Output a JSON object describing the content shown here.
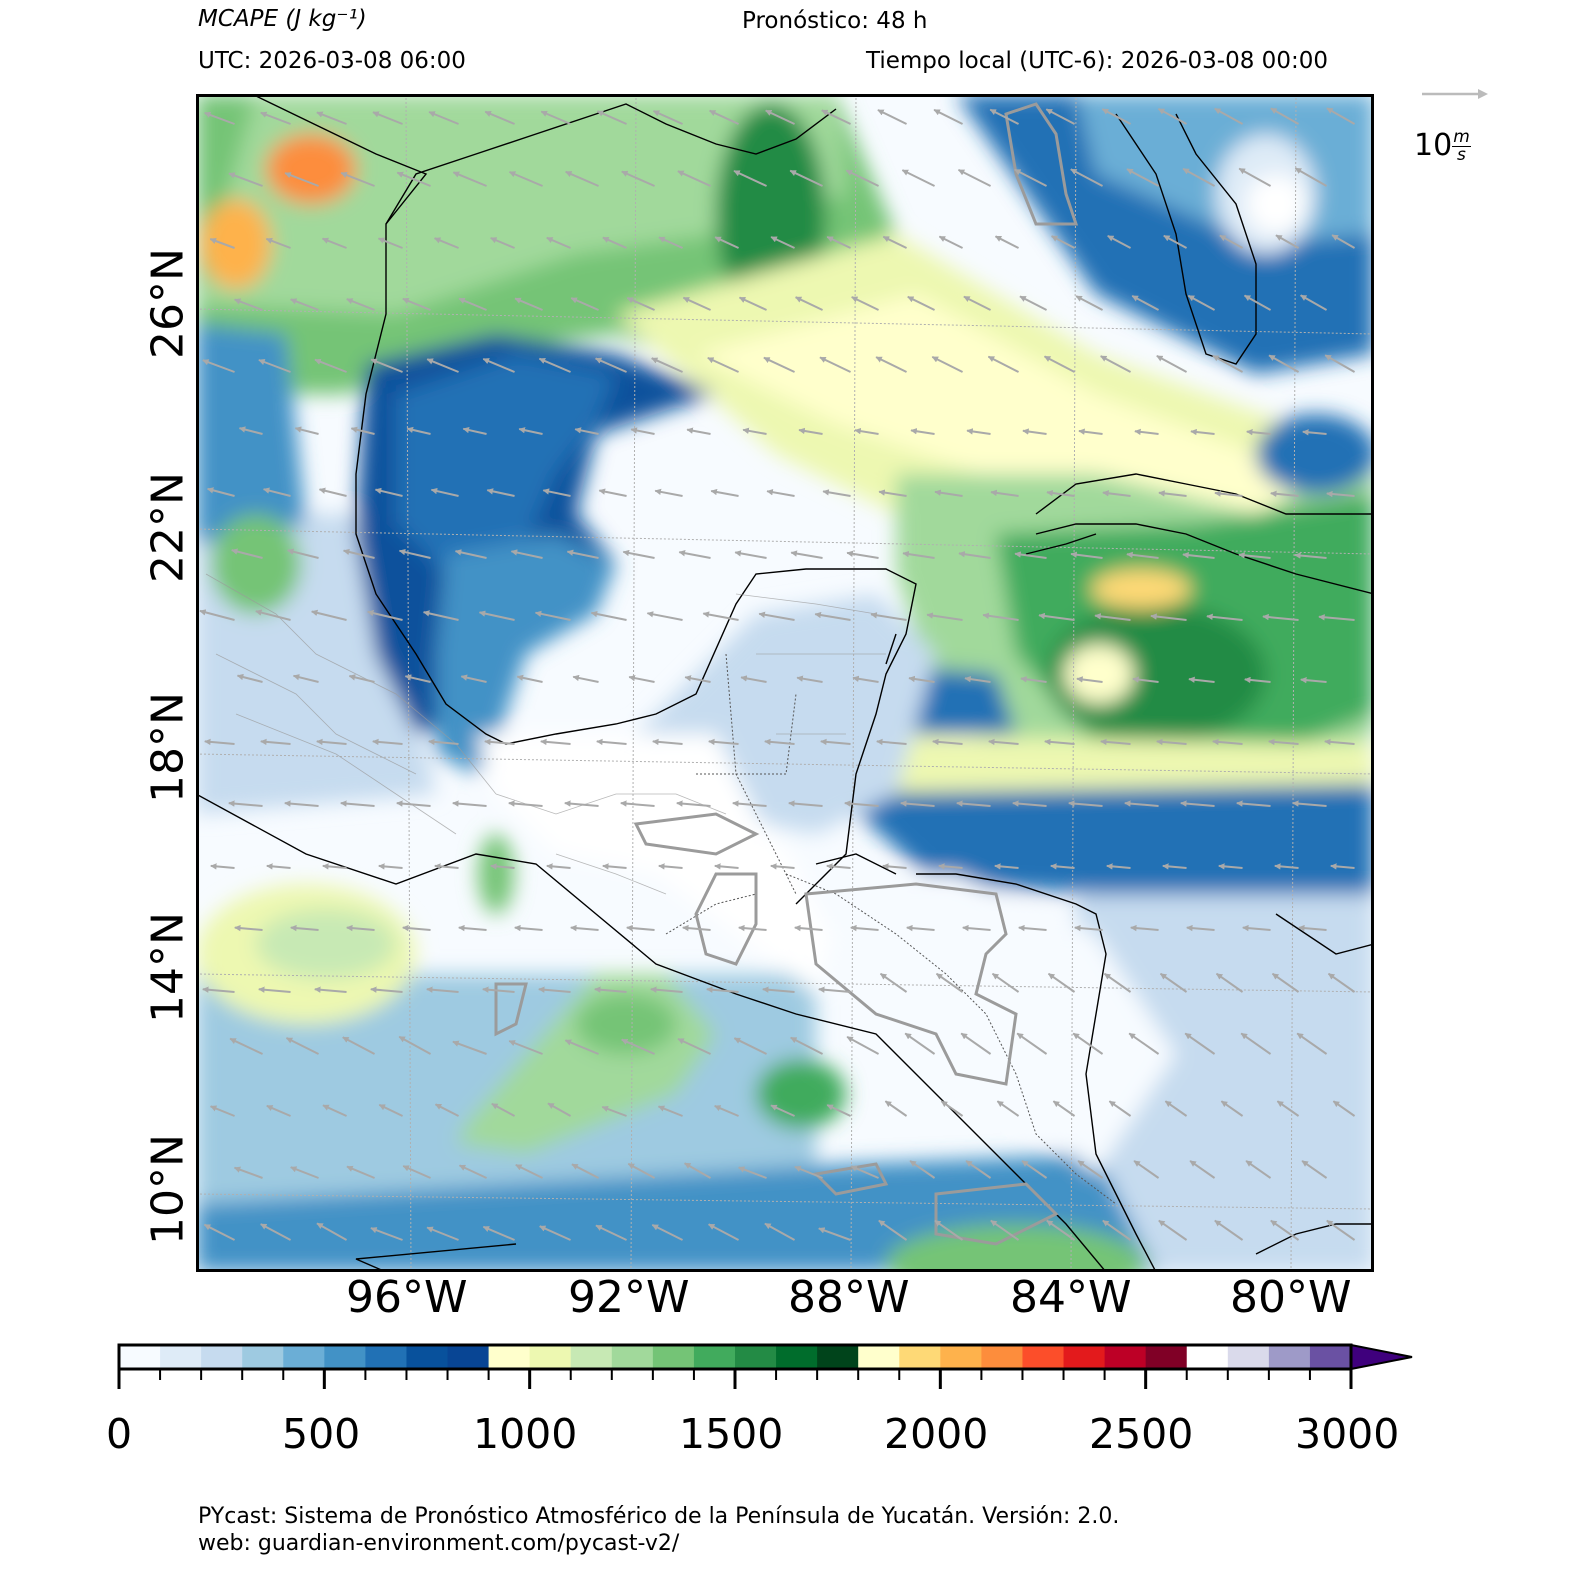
{
  "header": {
    "variable": "MCAPE (J kg⁻¹)",
    "forecast": "Pronóstico: 48 h",
    "utc": "UTC:  2026-03-08 06:00",
    "local": "Tiempo local (UTC-6): 2026-03-08 00:00"
  },
  "wind_scale": {
    "value": "10",
    "unit_num": "m",
    "unit_den": "s"
  },
  "map": {
    "lat_labels": [
      "26°N",
      "22°N",
      "18°N",
      "14°N",
      "10°N"
    ],
    "lon_labels": [
      "96°W",
      "92°W",
      "88°W",
      "84°W",
      "80°W"
    ]
  },
  "colorbar": {
    "ticks": [
      "0",
      "500",
      "1000",
      "1500",
      "2000",
      "2500",
      "3000"
    ],
    "min": 0,
    "max": 3000,
    "step": 100,
    "colors": [
      "#f7fbff",
      "#deebf7",
      "#c6dbef",
      "#9ecae1",
      "#6baed6",
      "#4292c6",
      "#2171b5",
      "#08519c",
      "#084594",
      "#ffffcc",
      "#edf8b1",
      "#c7e9b4",
      "#a1d99b",
      "#74c476",
      "#41ab5d",
      "#238b45",
      "#006d2c",
      "#00441b",
      "#ffffcc",
      "#fed976",
      "#feb24c",
      "#fd8d3c",
      "#fc4e2a",
      "#e31a1c",
      "#bd0026",
      "#800026",
      "#ffffff",
      "#dadaeb",
      "#9e9ac8",
      "#6a51a3",
      "#3f007d"
    ]
  },
  "footer": {
    "line1": "PYcast: Sistema de Pronóstico Atmosférico de la Península de Yucatán. Versión: 2.0.",
    "line2": "web: guardian-environment.com/pycast-v2/"
  }
}
